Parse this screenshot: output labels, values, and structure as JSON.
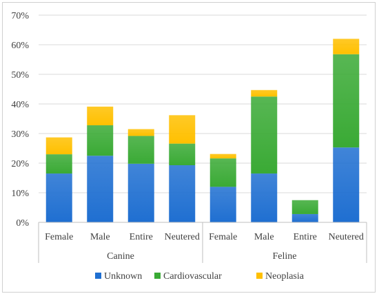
{
  "chart_data": {
    "type": "bar",
    "stacked": true,
    "groups": [
      {
        "label": "Canine",
        "categories": [
          "Female",
          "Male",
          "Entire",
          "Neutered"
        ]
      },
      {
        "label": "Feline",
        "categories": [
          "Female",
          "Male",
          "Entire",
          "Neutered"
        ]
      }
    ],
    "categories": [
      "Female",
      "Male",
      "Entire",
      "Neutered",
      "Female",
      "Male",
      "Entire",
      "Neutered"
    ],
    "series": [
      {
        "name": "Unknown",
        "color": "#1f6fd1",
        "values": [
          16.5,
          22.5,
          19.8,
          19.3,
          12.0,
          16.5,
          2.8,
          25.3
        ]
      },
      {
        "name": "Cardiovascular",
        "color": "#3aaa35",
        "values": [
          6.5,
          10.3,
          9.4,
          7.3,
          9.6,
          26.0,
          4.7,
          31.5
        ]
      },
      {
        "name": "Neoplasia",
        "color": "#ffc000",
        "values": [
          5.7,
          6.3,
          2.3,
          9.6,
          1.5,
          2.2,
          0.0,
          5.2
        ]
      }
    ],
    "ylim": [
      0,
      70
    ],
    "yticks": [
      "0%",
      "10%",
      "20%",
      "30%",
      "40%",
      "50%",
      "60%",
      "70%"
    ],
    "ytick_values": [
      0,
      10,
      20,
      30,
      40,
      50,
      60,
      70
    ],
    "grid": true,
    "legend_position": "bottom",
    "title": "",
    "xlabel": "",
    "ylabel": ""
  }
}
